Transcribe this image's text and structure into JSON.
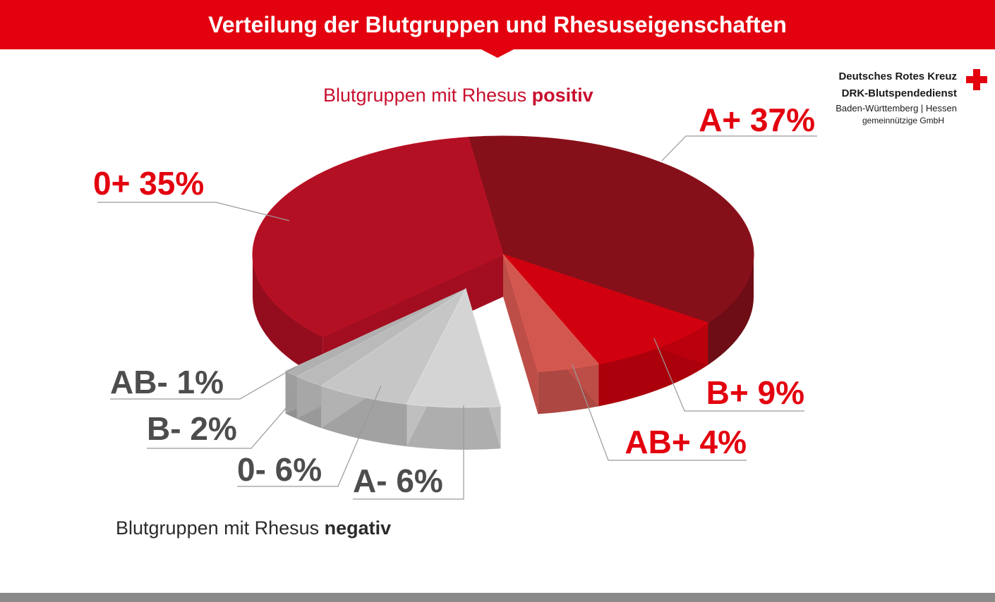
{
  "header": {
    "title": "Verteilung der Blutgruppen und Rhesuseigenschaften"
  },
  "logo": {
    "org": "Deutsches Rotes Kreuz",
    "service": "DRK-Blutspendedienst",
    "region": "Baden-Württemberg | Hessen",
    "status": "gemeinnützige GmbH"
  },
  "sections": {
    "positive_prefix": "Blutgruppen mit Rhesus ",
    "positive_bold": "positiv",
    "negative_prefix": "Blutgruppen mit Rhesus ",
    "negative_bold": "negativ"
  },
  "colors": {
    "brand_red": "#e3000f",
    "positive_label": "#e3000f",
    "negative_label": "#4d4d4d"
  },
  "chart_data": {
    "type": "pie",
    "title": "Verteilung der Blutgruppen und Rhesuseigenschaften",
    "unit": "%",
    "slices": [
      {
        "label": "A+ 37%",
        "group": "A+",
        "value": 37,
        "rhesus": "positiv",
        "color": "#86101a"
      },
      {
        "label": "B+ 9%",
        "group": "B+",
        "value": 9,
        "rhesus": "positiv",
        "color": "#d0000e"
      },
      {
        "label": "AB+ 4%",
        "group": "AB+",
        "value": 4,
        "rhesus": "positiv",
        "color": "#d2574f"
      },
      {
        "label": "A- 6%",
        "group": "A-",
        "value": 6,
        "rhesus": "negativ",
        "color": "#d4d4d4"
      },
      {
        "label": "0- 6%",
        "group": "0-",
        "value": 6,
        "rhesus": "negativ",
        "color": "#c6c6c6"
      },
      {
        "label": "B- 2%",
        "group": "B-",
        "value": 2,
        "rhesus": "negativ",
        "color": "#bababa"
      },
      {
        "label": "AB- 1%",
        "group": "AB-",
        "value": 1,
        "rhesus": "negativ",
        "color": "#b0b0b0"
      },
      {
        "label": "0+ 35%",
        "group": "0+",
        "value": 35,
        "rhesus": "positiv",
        "color": "#b41024"
      }
    ]
  }
}
